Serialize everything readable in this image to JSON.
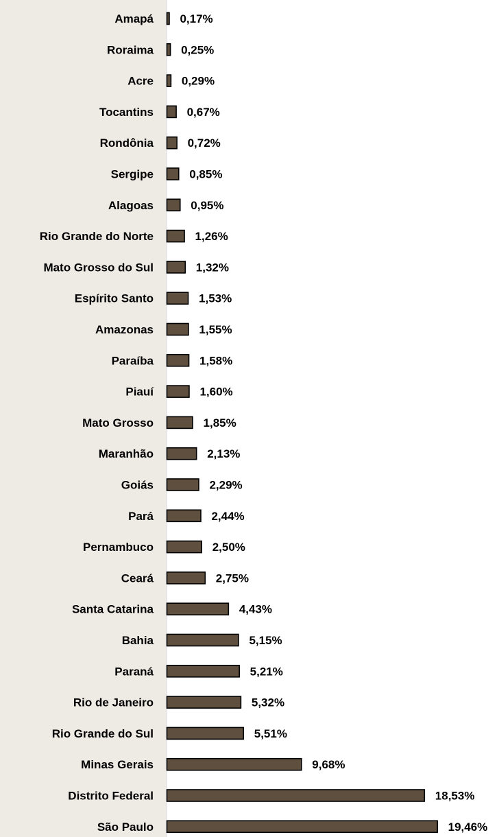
{
  "colors": {
    "bar": "#5e4f3f",
    "bar_outline": "#000000",
    "background": "#eeeae4",
    "plot_background": "#ffffff"
  },
  "chart_data": {
    "type": "bar",
    "orientation": "horizontal",
    "categories": [
      "Amapá",
      "Roraima",
      "Acre",
      "Tocantins",
      "Rondônia",
      "Sergipe",
      "Alagoas",
      "Rio Grande do Norte",
      "Mato Grosso do Sul",
      "Espírito Santo",
      "Amazonas",
      "Paraíba",
      "Piauí",
      "Mato Grosso",
      "Maranhão",
      "Goiás",
      "Pará",
      "Pernambuco",
      "Ceará",
      "Santa Catarina",
      "Bahia",
      "Paraná",
      "Rio de Janeiro",
      "Rio Grande do Sul",
      "Minas Gerais",
      "Distrito Federal",
      "São Paulo"
    ],
    "values": [
      0.17,
      0.25,
      0.29,
      0.67,
      0.72,
      0.85,
      0.95,
      1.26,
      1.32,
      1.53,
      1.55,
      1.58,
      1.6,
      1.85,
      2.13,
      2.29,
      2.44,
      2.5,
      2.75,
      4.43,
      5.15,
      5.21,
      5.32,
      5.51,
      9.68,
      18.53,
      19.46
    ],
    "value_labels": [
      "0,17%",
      "0,25%",
      "0,29%",
      "0,67%",
      "0,72%",
      "0,85%",
      "0,95%",
      "1,26%",
      "1,32%",
      "1,53%",
      "1,55%",
      "1,58%",
      "1,60%",
      "1,85%",
      "2,13%",
      "2,29%",
      "2,44%",
      "2,50%",
      "2,75%",
      "4,43%",
      "5,15%",
      "5,21%",
      "5,32%",
      "5,51%",
      "9,68%",
      "18,53%",
      "19,46%"
    ],
    "xlim": [
      0,
      19.46
    ],
    "grid": false,
    "legend": "none"
  }
}
